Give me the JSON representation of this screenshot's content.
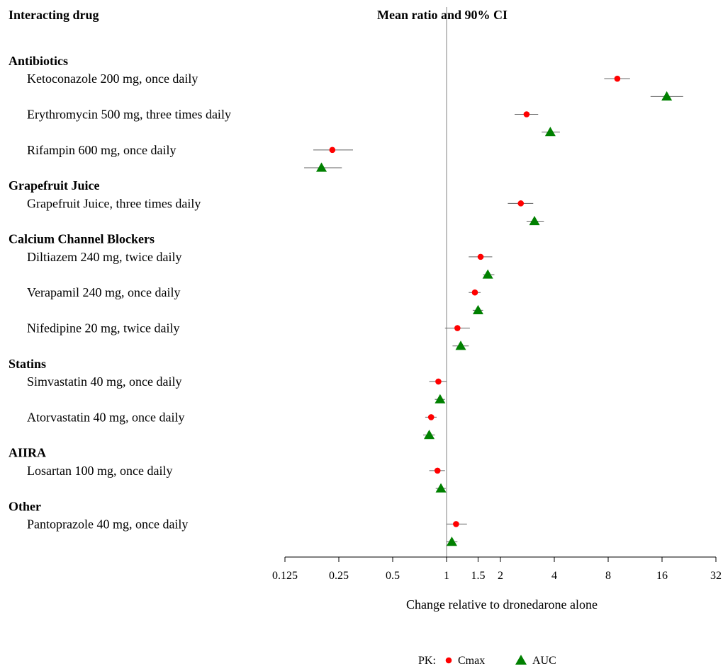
{
  "header": {
    "left": "Interacting drug",
    "center": "Mean ratio and 90% CI"
  },
  "chart_data": {
    "type": "forest",
    "scale": "log2",
    "xlim": [
      0.125,
      32
    ],
    "xticks": [
      0.125,
      0.25,
      0.5,
      1,
      1.5,
      2,
      4,
      8,
      16,
      32
    ],
    "xtick_labels": [
      "0.125",
      "0.25",
      "0.5",
      "1",
      "1.5",
      "2",
      "4",
      "8",
      "16",
      "32"
    ],
    "reference_line": 1,
    "xlabel": "Change relative to dronedarone alone",
    "legend": {
      "prefix": "PK:",
      "placement": "bottom-center",
      "items": [
        {
          "name": "Cmax",
          "marker": "circle",
          "color": "#ff0000"
        },
        {
          "name": "AUC",
          "marker": "triangle",
          "color": "#008000"
        }
      ]
    },
    "groups": [
      {
        "name": "Antibiotics",
        "drugs": [
          {
            "label": "Ketoconazole 200 mg, once daily",
            "cmax": {
              "mean": 9.0,
              "lo": 7.6,
              "hi": 10.6
            },
            "auc": {
              "mean": 17.0,
              "lo": 13.8,
              "hi": 21.0
            }
          },
          {
            "label": "Erythromycin 500 mg, three times daily",
            "cmax": {
              "mean": 2.8,
              "lo": 2.4,
              "hi": 3.25
            },
            "auc": {
              "mean": 3.8,
              "lo": 3.4,
              "hi": 4.3
            }
          },
          {
            "label": "Rifampin 600 mg, once daily",
            "cmax": {
              "mean": 0.23,
              "lo": 0.18,
              "hi": 0.3
            },
            "auc": {
              "mean": 0.2,
              "lo": 0.16,
              "hi": 0.26
            }
          }
        ]
      },
      {
        "name": "Grapefruit Juice",
        "drugs": [
          {
            "label": "Grapefruit Juice, three times daily",
            "cmax": {
              "mean": 2.6,
              "lo": 2.2,
              "hi": 3.05
            },
            "auc": {
              "mean": 3.1,
              "lo": 2.8,
              "hi": 3.5
            }
          }
        ]
      },
      {
        "name": "Calcium Channel Blockers",
        "drugs": [
          {
            "label": "Diltiazem 240 mg, twice daily",
            "cmax": {
              "mean": 1.55,
              "lo": 1.33,
              "hi": 1.8
            },
            "auc": {
              "mean": 1.7,
              "lo": 1.6,
              "hi": 1.85
            }
          },
          {
            "label": "Verapamil 240 mg, once daily",
            "cmax": {
              "mean": 1.44,
              "lo": 1.33,
              "hi": 1.55
            },
            "auc": {
              "mean": 1.5,
              "lo": 1.4,
              "hi": 1.6
            }
          },
          {
            "label": "Nifedipine 20 mg, twice daily",
            "cmax": {
              "mean": 1.15,
              "lo": 0.98,
              "hi": 1.35
            },
            "auc": {
              "mean": 1.2,
              "lo": 1.08,
              "hi": 1.33
            }
          }
        ]
      },
      {
        "name": "Statins",
        "drugs": [
          {
            "label": "Simvastatin 40 mg, once daily",
            "cmax": {
              "mean": 0.9,
              "lo": 0.8,
              "hi": 1.0
            },
            "auc": {
              "mean": 0.92,
              "lo": 0.86,
              "hi": 0.98
            }
          },
          {
            "label": "Atorvastatin 40 mg, once daily",
            "cmax": {
              "mean": 0.82,
              "lo": 0.76,
              "hi": 0.88
            },
            "auc": {
              "mean": 0.8,
              "lo": 0.74,
              "hi": 0.86
            }
          }
        ]
      },
      {
        "name": "AIIRA",
        "drugs": [
          {
            "label": "Losartan 100 mg, once daily",
            "cmax": {
              "mean": 0.89,
              "lo": 0.8,
              "hi": 0.98
            },
            "auc": {
              "mean": 0.93,
              "lo": 0.87,
              "hi": 0.99
            }
          }
        ]
      },
      {
        "name": "Other",
        "drugs": [
          {
            "label": "Pantoprazole 40 mg, once daily",
            "cmax": {
              "mean": 1.13,
              "lo": 1.0,
              "hi": 1.3
            },
            "auc": {
              "mean": 1.07,
              "lo": 1.0,
              "hi": 1.15
            }
          }
        ]
      }
    ]
  }
}
